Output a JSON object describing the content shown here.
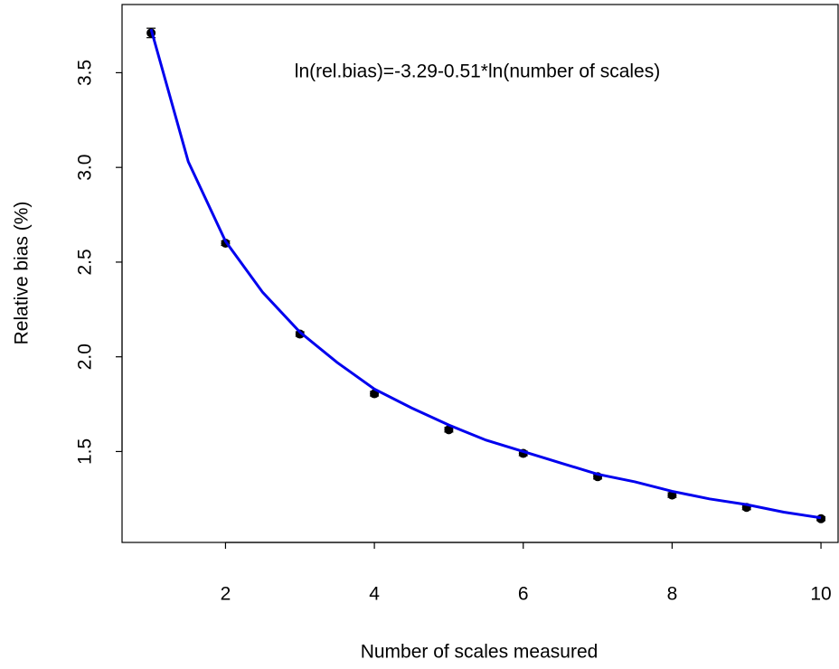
{
  "chart_data": {
    "type": "scatter",
    "x_label": "Number of scales measured",
    "y_label": "Relative bias (%)",
    "annotation": "ln(rel.bias)=-3.29-0.51*ln(number of scales)",
    "xlim": [
      0.61,
      10.23
    ],
    "ylim": [
      1.02,
      3.86
    ],
    "xticks": [
      2,
      4,
      6,
      8,
      10
    ],
    "yticks": [
      1.5,
      {
        "value": 2,
        "label": "2.0"
      },
      2.5,
      {
        "value": 3,
        "label": "3.0"
      },
      3.5
    ],
    "points": {
      "color": "#000000",
      "x": [
        1,
        2,
        3,
        4,
        5,
        6,
        7,
        8,
        9,
        10
      ],
      "values": [
        3.71,
        2.6,
        2.12,
        1.805,
        1.615,
        1.49,
        1.367,
        1.27,
        1.205,
        1.145
      ],
      "errors": [
        0.025,
        0.012,
        0.012,
        0.012,
        0.012,
        0.012,
        0.012,
        0.012,
        0.012,
        0.01
      ]
    },
    "fit": {
      "color": "#0000ee",
      "x": [
        1,
        1.5,
        2,
        2.5,
        3,
        3.5,
        4,
        4.5,
        5,
        5.5,
        6,
        6.5,
        7,
        7.5,
        8,
        8.5,
        9,
        9.5,
        10
      ],
      "values": [
        3.73,
        3.03,
        2.61,
        2.34,
        2.13,
        1.97,
        1.83,
        1.73,
        1.64,
        1.56,
        1.5,
        1.44,
        1.38,
        1.34,
        1.29,
        1.25,
        1.22,
        1.18,
        1.15
      ]
    }
  }
}
